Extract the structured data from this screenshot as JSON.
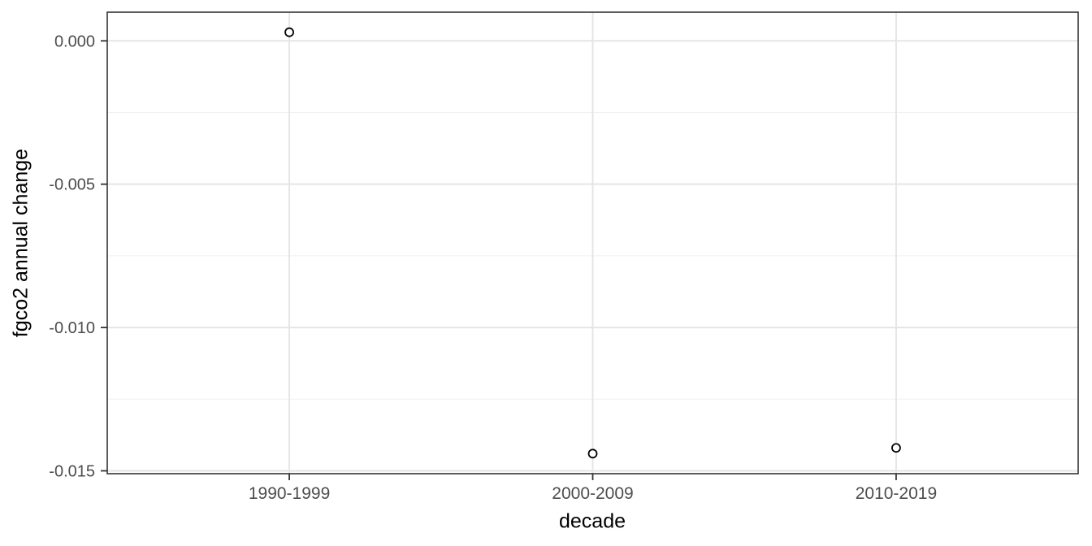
{
  "chart_data": {
    "type": "scatter",
    "title": "",
    "xlabel": "decade",
    "ylabel": "fgco2 annual change",
    "categories": [
      "1990-1999",
      "2000-2009",
      "2010-2019"
    ],
    "values": [
      0.0003,
      -0.0144,
      -0.0142
    ],
    "ylim": [
      -0.0151,
      0.001
    ],
    "y_ticks": [
      {
        "value": 0.0,
        "label": "0.000"
      },
      {
        "value": -0.005,
        "label": "-0.005"
      },
      {
        "value": -0.01,
        "label": "-0.010"
      },
      {
        "value": -0.015,
        "label": "-0.015"
      }
    ],
    "y_minor_ticks": [
      -0.0025,
      -0.0075,
      -0.0125
    ],
    "grid": true,
    "legend_position": "none",
    "point_style": "open-circle",
    "colors": {
      "background": "#ffffff",
      "panel_background": "#ffffff",
      "panel_border": "#333333",
      "grid_major": "#e5e5e5",
      "grid_minor": "#f0f0f0",
      "tick_mark": "#333333",
      "tick_label": "#4d4d4d",
      "axis_title": "#000000",
      "point_stroke": "#000000",
      "point_fill": "#ffffff"
    }
  }
}
